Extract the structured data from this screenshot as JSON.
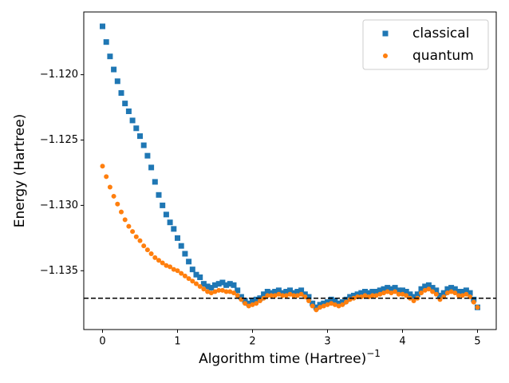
{
  "chart_data": {
    "type": "scatter",
    "x_label": "Algorithm time (Hartree)",
    "x_label_superscript": "−1",
    "y_label": "Energy (Hartree)",
    "xlim": [
      -0.25,
      5.25
    ],
    "xticks": [
      0,
      1,
      2,
      3,
      4,
      5
    ],
    "ylim": [
      -1.1395,
      -1.1152
    ],
    "yticks": [
      {
        "value": -1.12,
        "label": "−1.120"
      },
      {
        "value": -1.125,
        "label": "−1.125"
      },
      {
        "value": -1.13,
        "label": "−1.130"
      },
      {
        "value": -1.135,
        "label": "−1.135"
      }
    ],
    "hline": -1.1371,
    "legend": "upper right",
    "x": [
      0,
      0.05,
      0.1,
      0.15,
      0.2,
      0.25,
      0.3,
      0.35,
      0.4,
      0.45,
      0.5,
      0.55,
      0.6,
      0.65,
      0.7,
      0.75,
      0.8,
      0.85,
      0.9,
      0.95,
      1.0,
      1.05,
      1.1,
      1.15,
      1.2,
      1.25,
      1.3,
      1.35,
      1.4,
      1.45,
      1.5,
      1.55,
      1.6,
      1.65,
      1.7,
      1.75,
      1.8,
      1.85,
      1.9,
      1.95,
      2.0,
      2.05,
      2.1,
      2.15,
      2.2,
      2.25,
      2.3,
      2.35,
      2.4,
      2.45,
      2.5,
      2.55,
      2.6,
      2.65,
      2.7,
      2.75,
      2.8,
      2.85,
      2.9,
      2.95,
      3.0,
      3.05,
      3.1,
      3.15,
      3.2,
      3.25,
      3.3,
      3.35,
      3.4,
      3.45,
      3.5,
      3.55,
      3.6,
      3.65,
      3.7,
      3.75,
      3.8,
      3.85,
      3.9,
      3.95,
      4.0,
      4.05,
      4.1,
      4.15,
      4.2,
      4.25,
      4.3,
      4.35,
      4.4,
      4.45,
      4.5,
      4.55,
      4.6,
      4.65,
      4.7,
      4.75,
      4.8,
      4.85,
      4.9,
      4.95,
      5.0
    ],
    "series": [
      {
        "name": "classical",
        "color": "#1f77b4",
        "marker": "square",
        "values": [
          -1.1163,
          -1.1175,
          -1.1186,
          -1.1196,
          -1.1205,
          -1.1214,
          -1.1222,
          -1.1228,
          -1.1235,
          -1.1241,
          -1.1247,
          -1.1254,
          -1.1262,
          -1.1271,
          -1.1282,
          -1.1292,
          -1.13,
          -1.1307,
          -1.1313,
          -1.1318,
          -1.1325,
          -1.1331,
          -1.1337,
          -1.1343,
          -1.1349,
          -1.1353,
          -1.1355,
          -1.136,
          -1.1362,
          -1.1363,
          -1.1361,
          -1.136,
          -1.1359,
          -1.1361,
          -1.136,
          -1.1361,
          -1.1365,
          -1.137,
          -1.1373,
          -1.1375,
          -1.1373,
          -1.1372,
          -1.1371,
          -1.1368,
          -1.1366,
          -1.1367,
          -1.1366,
          -1.1365,
          -1.1367,
          -1.1366,
          -1.1365,
          -1.1367,
          -1.1366,
          -1.1365,
          -1.1368,
          -1.137,
          -1.1375,
          -1.1378,
          -1.1376,
          -1.1375,
          -1.1374,
          -1.1372,
          -1.1373,
          -1.1375,
          -1.1374,
          -1.1372,
          -1.137,
          -1.1369,
          -1.1368,
          -1.1367,
          -1.1366,
          -1.1367,
          -1.1366,
          -1.1366,
          -1.1365,
          -1.1364,
          -1.1363,
          -1.1364,
          -1.1363,
          -1.1365,
          -1.1365,
          -1.1366,
          -1.1368,
          -1.137,
          -1.1368,
          -1.1364,
          -1.1362,
          -1.1361,
          -1.1363,
          -1.1365,
          -1.1369,
          -1.1367,
          -1.1364,
          -1.1363,
          -1.1364,
          -1.1366,
          -1.1366,
          -1.1365,
          -1.1367,
          -1.1372,
          -1.1378
        ]
      },
      {
        "name": "quantum",
        "color": "#ff7f0e",
        "marker": "circle",
        "values": [
          -1.127,
          -1.1278,
          -1.1286,
          -1.1293,
          -1.1299,
          -1.1305,
          -1.1311,
          -1.1316,
          -1.132,
          -1.1324,
          -1.1327,
          -1.1331,
          -1.1334,
          -1.1337,
          -1.134,
          -1.1342,
          -1.1344,
          -1.1346,
          -1.1347,
          -1.1349,
          -1.135,
          -1.1352,
          -1.1354,
          -1.1356,
          -1.1358,
          -1.136,
          -1.1362,
          -1.1364,
          -1.1366,
          -1.1367,
          -1.1366,
          -1.1365,
          -1.1365,
          -1.1366,
          -1.1366,
          -1.1367,
          -1.1369,
          -1.1372,
          -1.1375,
          -1.1377,
          -1.1376,
          -1.1375,
          -1.1373,
          -1.1371,
          -1.1369,
          -1.1369,
          -1.1369,
          -1.1368,
          -1.1369,
          -1.1369,
          -1.1368,
          -1.1369,
          -1.1369,
          -1.1368,
          -1.137,
          -1.1373,
          -1.1377,
          -1.138,
          -1.1378,
          -1.1377,
          -1.1376,
          -1.1375,
          -1.1376,
          -1.1377,
          -1.1376,
          -1.1374,
          -1.1372,
          -1.1371,
          -1.137,
          -1.137,
          -1.1369,
          -1.137,
          -1.1369,
          -1.1369,
          -1.1368,
          -1.1367,
          -1.1366,
          -1.1367,
          -1.1366,
          -1.1368,
          -1.1368,
          -1.1369,
          -1.1371,
          -1.1373,
          -1.1371,
          -1.1367,
          -1.1365,
          -1.1364,
          -1.1366,
          -1.1368,
          -1.1372,
          -1.137,
          -1.1367,
          -1.1366,
          -1.1367,
          -1.1369,
          -1.1369,
          -1.1368,
          -1.137,
          -1.1374,
          -1.1378
        ]
      }
    ]
  }
}
